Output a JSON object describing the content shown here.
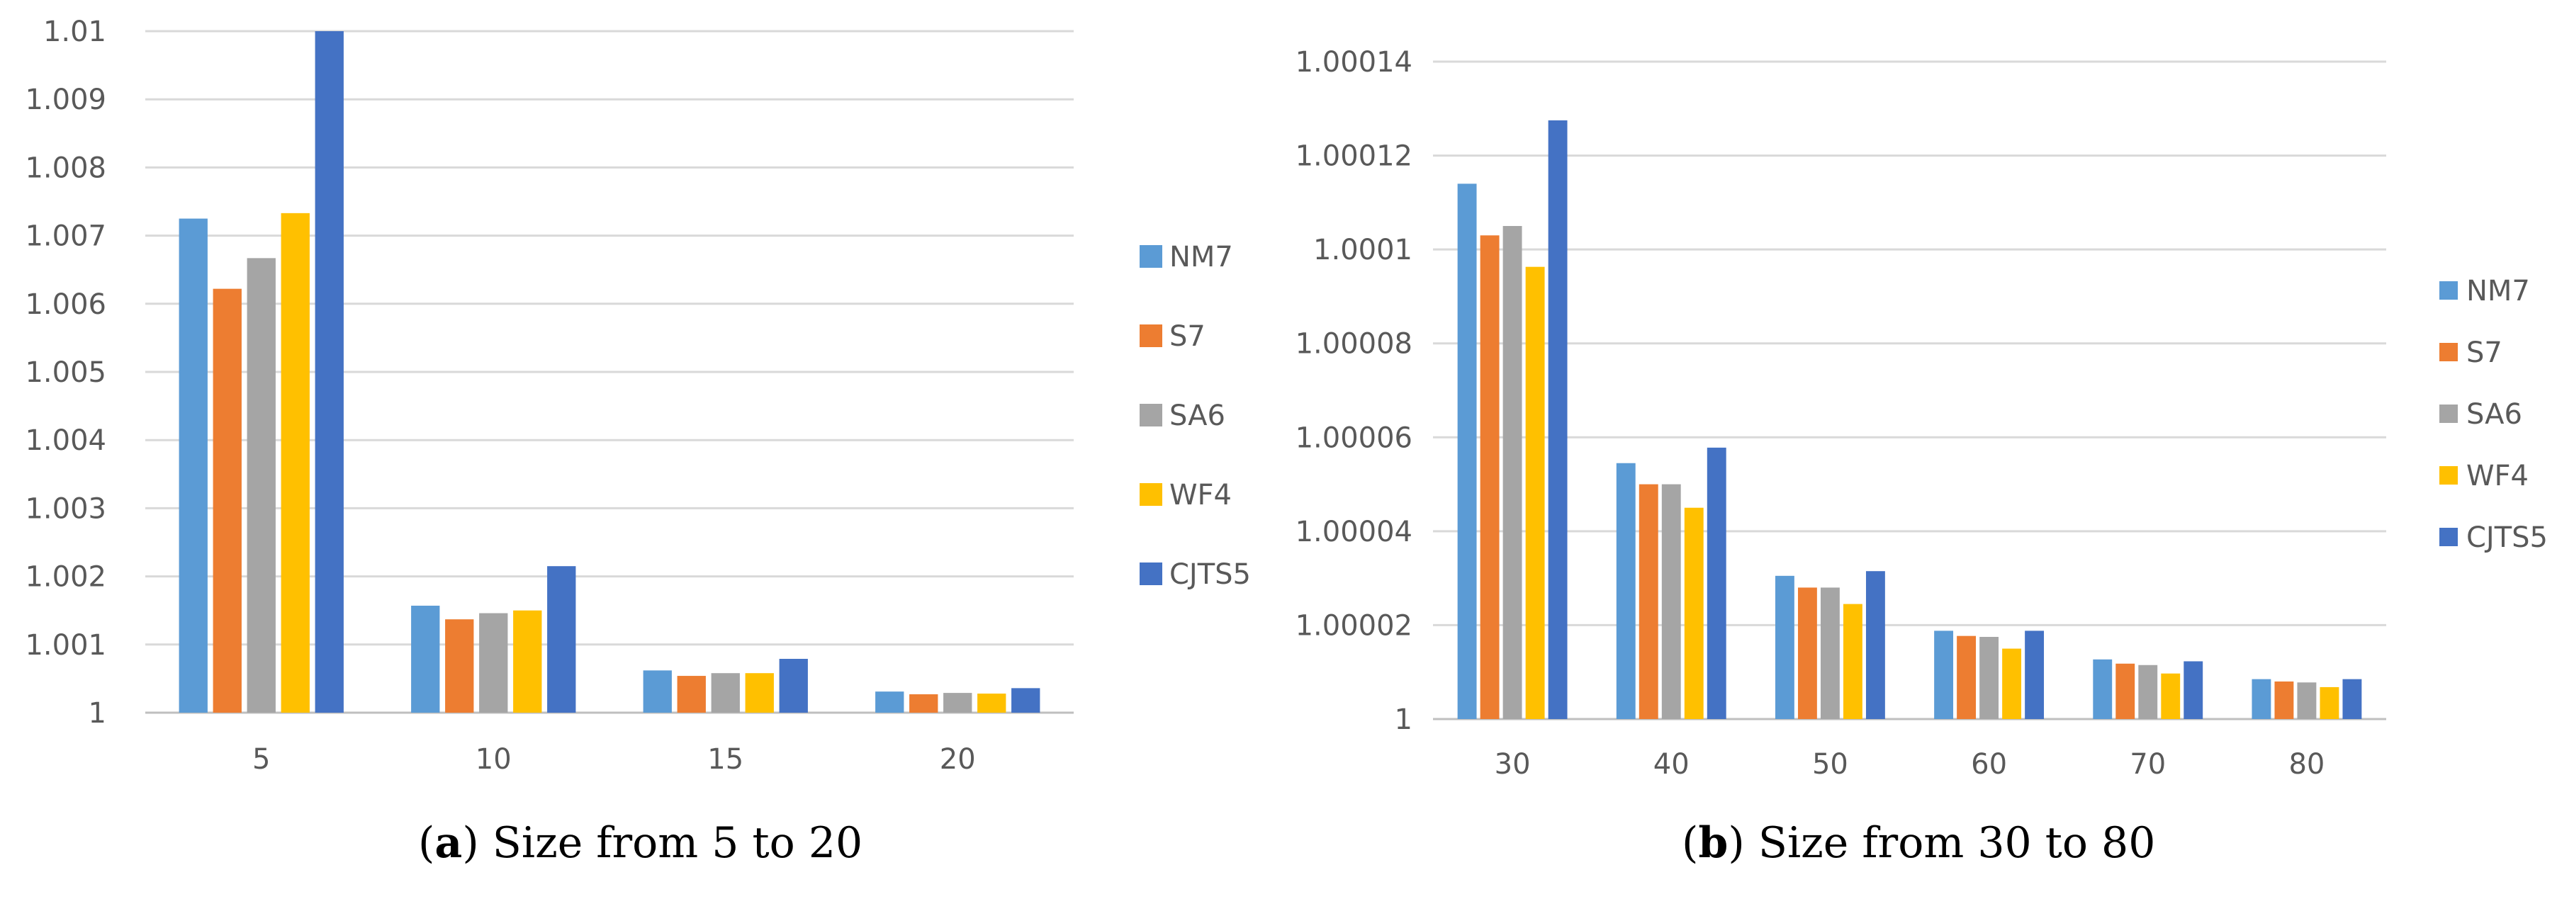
{
  "colors": {
    "NM7": "#5b9bd5",
    "S7": "#ed7d31",
    "SA6": "#a5a5a5",
    "WF4": "#ffc000",
    "CJTS5": "#4472c4",
    "grid": "#d9d9d9",
    "text": "#595959"
  },
  "chart_data": [
    {
      "type": "bar",
      "caption_letter": "a",
      "caption_text": "Size from 5 to 20",
      "categories": [
        "5",
        "10",
        "15",
        "20"
      ],
      "ylim": [
        1,
        1.01
      ],
      "yticks": [
        1,
        1.001,
        1.002,
        1.003,
        1.004,
        1.005,
        1.006,
        1.007,
        1.008,
        1.009,
        1.01
      ],
      "ytick_labels": [
        "1",
        "1.001",
        "1.002",
        "1.003",
        "1.004",
        "1.005",
        "1.006",
        "1.007",
        "1.008",
        "1.009",
        "1.01"
      ],
      "series": [
        {
          "name": "NM7",
          "values": [
            1.00725,
            1.00157,
            1.00062,
            1.00031
          ]
        },
        {
          "name": "S7",
          "values": [
            1.00622,
            1.00137,
            1.00054,
            1.00027
          ]
        },
        {
          "name": "SA6",
          "values": [
            1.00667,
            1.00146,
            1.00058,
            1.00029
          ]
        },
        {
          "name": "WF4",
          "values": [
            1.00733,
            1.0015,
            1.00058,
            1.00028
          ]
        },
        {
          "name": "CJTS5",
          "values": [
            1.01,
            1.00215,
            1.00079,
            1.00036
          ]
        }
      ]
    },
    {
      "type": "bar",
      "caption_letter": "b",
      "caption_text": "Size from 30 to 80",
      "categories": [
        "30",
        "40",
        "50",
        "60",
        "70",
        "80"
      ],
      "ylim": [
        1,
        1.00014
      ],
      "yticks": [
        1,
        1.00002,
        1.00004,
        1.00006,
        1.00008,
        1.0001,
        1.00012,
        1.00014
      ],
      "ytick_labels": [
        "1",
        "1.00002",
        "1.00004",
        "1.00006",
        "1.00008",
        "1.0001",
        "1.00012",
        "1.00014"
      ],
      "series": [
        {
          "name": "NM7",
          "values": [
            1.000114,
            1.0000545,
            1.0000305,
            1.0000188,
            1.0000127,
            1.0000085
          ]
        },
        {
          "name": "S7",
          "values": [
            1.000103,
            1.00005,
            1.000028,
            1.0000177,
            1.0000118,
            1.000008
          ]
        },
        {
          "name": "SA6",
          "values": [
            1.000105,
            1.00005,
            1.000028,
            1.0000175,
            1.0000115,
            1.0000078
          ]
        },
        {
          "name": "WF4",
          "values": [
            1.0000963,
            1.000045,
            1.0000245,
            1.000015,
            1.0000097,
            1.0000068
          ]
        },
        {
          "name": "CJTS5",
          "values": [
            1.0001275,
            1.0000578,
            1.0000315,
            1.0000188,
            1.0000123,
            1.0000085
          ]
        }
      ]
    }
  ]
}
